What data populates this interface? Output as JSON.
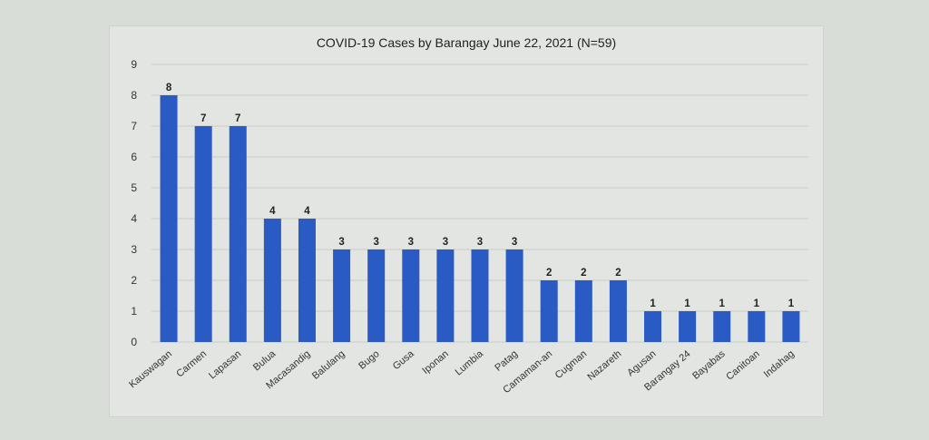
{
  "chart_data": {
    "type": "bar",
    "title": "COVID-19 Cases by Barangay June 22, 2021 (N=59)",
    "categories": [
      "Kauswagan",
      "Carmen",
      "Lapasan",
      "Bulua",
      "Macasandig",
      "Balulang",
      "Bugo",
      "Gusa",
      "Iponan",
      "Lumbia",
      "Patag",
      "Camaman-an",
      "Cugman",
      "Nazareth",
      "Agusan",
      "Barangay 24",
      "Bayabas",
      "Canitoan",
      "Indahag"
    ],
    "values": [
      8,
      7,
      7,
      4,
      4,
      3,
      3,
      3,
      3,
      3,
      3,
      2,
      2,
      2,
      1,
      1,
      1,
      1,
      1
    ],
    "ylim": [
      0,
      9
    ],
    "yticks": [
      0,
      1,
      2,
      3,
      4,
      5,
      6,
      7,
      8,
      9
    ],
    "grid": true,
    "bar_color": "#2a5bc4",
    "grid_color": "#c9ccc8"
  }
}
